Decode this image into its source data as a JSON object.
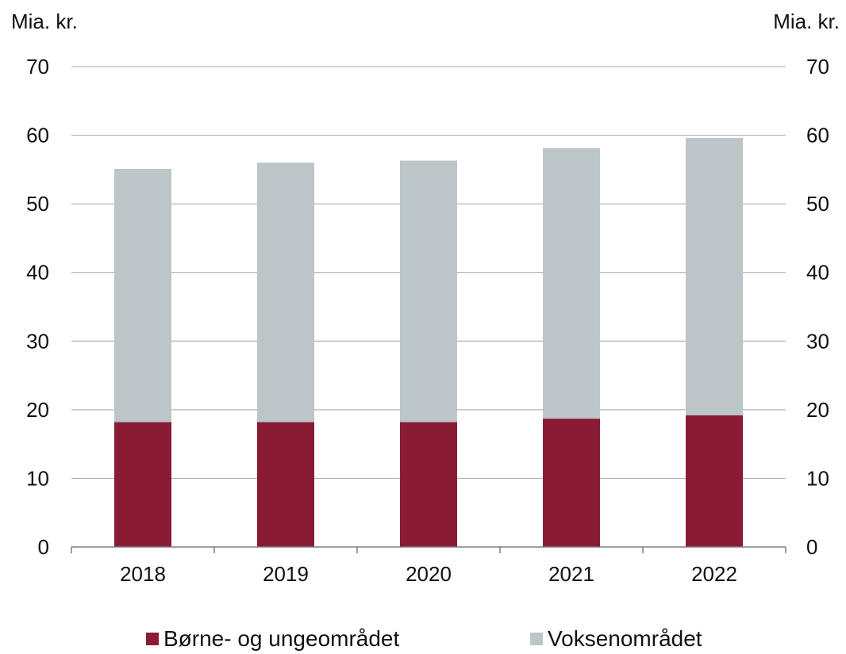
{
  "chart_data": {
    "type": "bar",
    "stacked": true,
    "y_unit_left": "Mia. kr.",
    "y_unit_right": "Mia. kr.",
    "categories": [
      "2018",
      "2019",
      "2020",
      "2021",
      "2022"
    ],
    "series": [
      {
        "name": "Børne- og ungeområdet",
        "color": "#8a1b35",
        "values": [
          18.2,
          18.2,
          18.2,
          18.7,
          19.2
        ]
      },
      {
        "name": "Voksenområdet",
        "color": "#bcc6c8",
        "values": [
          36.9,
          37.8,
          38.1,
          39.4,
          40.4
        ]
      }
    ],
    "ylim": [
      0,
      70
    ],
    "yticks": [
      0,
      10,
      20,
      30,
      40,
      50,
      60,
      70
    ],
    "grid": true,
    "legend_position": "bottom"
  }
}
